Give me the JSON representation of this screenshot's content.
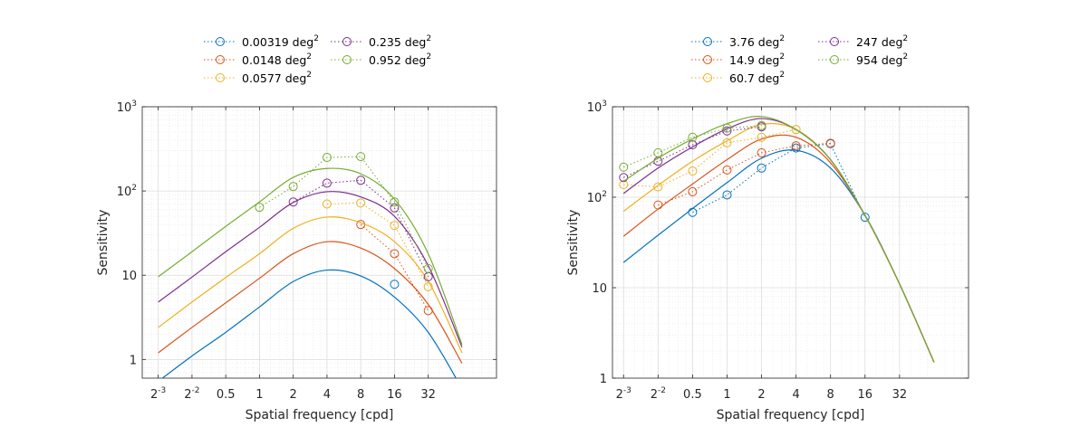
{
  "chart_data": [
    {
      "type": "line",
      "xlabel": "Spatial frequency [cpd]",
      "ylabel": "Sensitivity",
      "xscale": "log2",
      "yscale": "log10",
      "xlim": [
        0.09,
        130
      ],
      "ylim": [
        0.6,
        1000
      ],
      "xticks": [
        0.125,
        0.25,
        0.5,
        1,
        2,
        4,
        8,
        16,
        32
      ],
      "xtick_labels": [
        {
          "base": "2",
          "exp": "-3"
        },
        {
          "base": "2",
          "exp": "-2"
        },
        {
          "base": "0.5",
          "exp": ""
        },
        {
          "base": "1",
          "exp": ""
        },
        {
          "base": "2",
          "exp": ""
        },
        {
          "base": "4",
          "exp": ""
        },
        {
          "base": "8",
          "exp": ""
        },
        {
          "base": "16",
          "exp": ""
        },
        {
          "base": "32",
          "exp": ""
        }
      ],
      "yticks": [
        1,
        10,
        100,
        1000
      ],
      "ytick_labels": [
        {
          "base": "1",
          "exp": ""
        },
        {
          "base": "10",
          "exp": ""
        },
        {
          "base": "10",
          "exp": "2"
        },
        {
          "base": "10",
          "exp": "3"
        }
      ],
      "grid": true,
      "legend_location": "top, outside, two columns",
      "series": [
        {
          "name": "0.00319 deg",
          "name_exp": "2",
          "color": "#0072BD",
          "curve_x": [
            0.125,
            0.25,
            0.5,
            1,
            2,
            4,
            8,
            16,
            32,
            64
          ],
          "curve_y": [
            0.55,
            1.1,
            2.1,
            4.2,
            8.4,
            11.5,
            9.8,
            5.5,
            2.1,
            0.45
          ],
          "points_x": [
            16
          ],
          "points_y": [
            7.8
          ]
        },
        {
          "name": "0.0148 deg",
          "name_exp": "2",
          "color": "#D95319",
          "curve_x": [
            0.125,
            0.25,
            0.5,
            1,
            2,
            4,
            8,
            16,
            32,
            64
          ],
          "curve_y": [
            1.2,
            2.4,
            4.7,
            9.2,
            18,
            25,
            21,
            12,
            4.5,
            0.9
          ],
          "points_x": [
            8,
            16,
            32
          ],
          "points_y": [
            40,
            18,
            3.8
          ]
        },
        {
          "name": "0.0577 deg",
          "name_exp": "2",
          "color": "#EDB120",
          "curve_x": [
            0.125,
            0.25,
            0.5,
            1,
            2,
            4,
            8,
            16,
            32,
            64
          ],
          "curve_y": [
            2.4,
            4.8,
            9.4,
            18,
            36,
            49,
            42,
            25,
            8.5,
            1.2
          ],
          "points_x": [
            4,
            8,
            16,
            32
          ],
          "points_y": [
            70,
            72,
            39,
            7.3
          ]
        },
        {
          "name": "0.235 deg",
          "name_exp": "2",
          "color": "#7E2F8E",
          "curve_x": [
            0.125,
            0.25,
            0.5,
            1,
            2,
            4,
            8,
            16,
            32,
            64
          ],
          "curve_y": [
            4.8,
            9.5,
            19,
            37,
            73,
            98,
            85,
            50,
            13,
            1.4
          ],
          "points_x": [
            2,
            4,
            8,
            16,
            32
          ],
          "points_y": [
            74,
            124,
            134,
            63,
            9.6
          ]
        },
        {
          "name": "0.952 deg",
          "name_exp": "2",
          "color": "#77AC30",
          "curve_x": [
            0.125,
            0.25,
            0.5,
            1,
            2,
            4,
            8,
            16,
            32,
            64
          ],
          "curve_y": [
            9.6,
            19,
            38,
            74,
            145,
            185,
            160,
            80,
            18,
            1.5
          ],
          "points_x": [
            1,
            2,
            4,
            8,
            16,
            32
          ],
          "points_y": [
            64,
            113,
            250,
            256,
            74,
            12
          ]
        }
      ]
    },
    {
      "type": "line",
      "xlabel": "Spatial frequency [cpd]",
      "ylabel": "Sensitivity",
      "xscale": "log2",
      "yscale": "log10",
      "xlim": [
        0.1,
        128
      ],
      "ylim": [
        1,
        1000
      ],
      "xticks": [
        0.125,
        0.25,
        0.5,
        1,
        2,
        4,
        8,
        16,
        32
      ],
      "xtick_labels": [
        {
          "base": "2",
          "exp": "-3"
        },
        {
          "base": "2",
          "exp": "-2"
        },
        {
          "base": "0.5",
          "exp": ""
        },
        {
          "base": "1",
          "exp": ""
        },
        {
          "base": "2",
          "exp": ""
        },
        {
          "base": "4",
          "exp": ""
        },
        {
          "base": "8",
          "exp": ""
        },
        {
          "base": "16",
          "exp": ""
        },
        {
          "base": "32",
          "exp": ""
        }
      ],
      "yticks": [
        1,
        10,
        100,
        1000
      ],
      "ytick_labels": [
        {
          "base": "1",
          "exp": ""
        },
        {
          "base": "10",
          "exp": ""
        },
        {
          "base": "10",
          "exp": "2"
        },
        {
          "base": "10",
          "exp": "3"
        }
      ],
      "grid": true,
      "legend_location": "top, outside, two columns",
      "series": [
        {
          "name": "3.76 deg",
          "name_exp": "2",
          "color": "#0072BD",
          "curve_x": [
            0.125,
            0.25,
            0.5,
            1,
            2,
            4,
            8,
            16,
            32,
            64
          ],
          "curve_y": [
            19,
            38,
            75,
            145,
            270,
            330,
            210,
            63,
            11,
            1.5
          ],
          "points_x": [
            0.5,
            1,
            2,
            4,
            8,
            16
          ],
          "points_y": [
            68,
            106,
            210,
            350,
            390,
            60
          ]
        },
        {
          "name": "14.9 deg",
          "name_exp": "2",
          "color": "#D95319",
          "curve_x": [
            0.125,
            0.25,
            0.5,
            1,
            2,
            4,
            8,
            16,
            32,
            64
          ],
          "curve_y": [
            37,
            74,
            140,
            260,
            440,
            460,
            240,
            63,
            11,
            1.5
          ],
          "points_x": [
            0.25,
            0.5,
            1,
            2,
            4,
            8
          ],
          "points_y": [
            82,
            115,
            200,
            310,
            370,
            395
          ]
        },
        {
          "name": "60.7 deg",
          "name_exp": "2",
          "color": "#EDB120",
          "curve_x": [
            0.125,
            0.25,
            0.5,
            1,
            2,
            4,
            8,
            16,
            32,
            64
          ],
          "curve_y": [
            70,
            135,
            250,
            420,
            640,
            560,
            260,
            63,
            11,
            1.5
          ],
          "points_x": [
            0.125,
            0.25,
            0.5,
            1,
            2,
            4
          ],
          "points_y": [
            138,
            130,
            195,
            400,
            460,
            560
          ]
        },
        {
          "name": "247 deg",
          "name_exp": "2",
          "color": "#7E2F8E",
          "curve_x": [
            0.125,
            0.25,
            0.5,
            1,
            2,
            4,
            8,
            16,
            32,
            64
          ],
          "curve_y": [
            110,
            210,
            360,
            570,
            740,
            560,
            260,
            63,
            11,
            1.5
          ],
          "points_x": [
            0.125,
            0.25,
            0.5,
            1,
            2
          ],
          "points_y": [
            165,
            250,
            380,
            540,
            600
          ]
        },
        {
          "name": "954 deg",
          "name_exp": "2",
          "color": "#77AC30",
          "curve_x": [
            0.125,
            0.25,
            0.5,
            1,
            2,
            4,
            8,
            16,
            32,
            64
          ],
          "curve_y": [
            150,
            270,
            440,
            650,
            780,
            560,
            260,
            63,
            11,
            1.5
          ],
          "points_x": [
            0.125,
            0.25,
            0.5,
            1,
            2
          ],
          "points_y": [
            215,
            310,
            460,
            580,
            620
          ]
        }
      ]
    }
  ]
}
